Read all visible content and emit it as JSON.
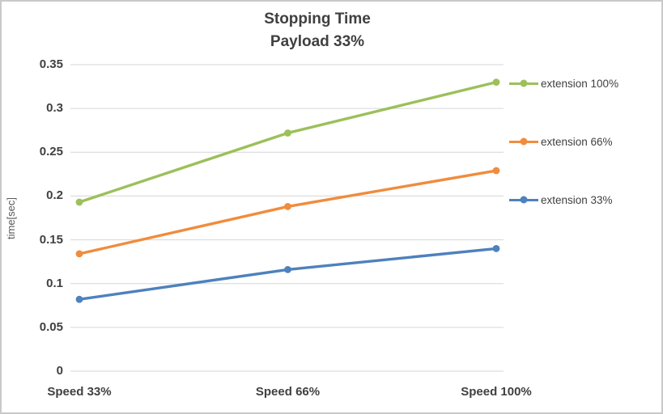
{
  "chart_data": {
    "type": "line",
    "title": "Stopping Time",
    "subtitle": "Payload 33%",
    "xlabel": "",
    "ylabel": "time[sec]",
    "categories": [
      "Speed 33%",
      "Speed 66%",
      "Speed 100%"
    ],
    "series": [
      {
        "name": "extension 100%",
        "color": "#9CC05A",
        "values": [
          0.193,
          0.272,
          0.33
        ]
      },
      {
        "name": "extension 66%",
        "color": "#F08C3D",
        "values": [
          0.134,
          0.188,
          0.229
        ]
      },
      {
        "name": "extension 33%",
        "color": "#4E81BD",
        "values": [
          0.082,
          0.116,
          0.14
        ]
      }
    ],
    "ylim": [
      0,
      0.35
    ],
    "yticks": [
      "0",
      "0.05",
      "0.1",
      "0.15",
      "0.2",
      "0.25",
      "0.3",
      "0.35"
    ],
    "ytick_values": [
      0,
      0.05,
      0.1,
      0.15,
      0.2,
      0.25,
      0.3,
      0.35
    ],
    "grid": true,
    "legend_position": "right"
  },
  "colors": {
    "text": "#404040",
    "axis_title": "#595959",
    "grid": "#D6D6D6",
    "border": "#C9C9C9",
    "background": "#FFFFFF"
  }
}
